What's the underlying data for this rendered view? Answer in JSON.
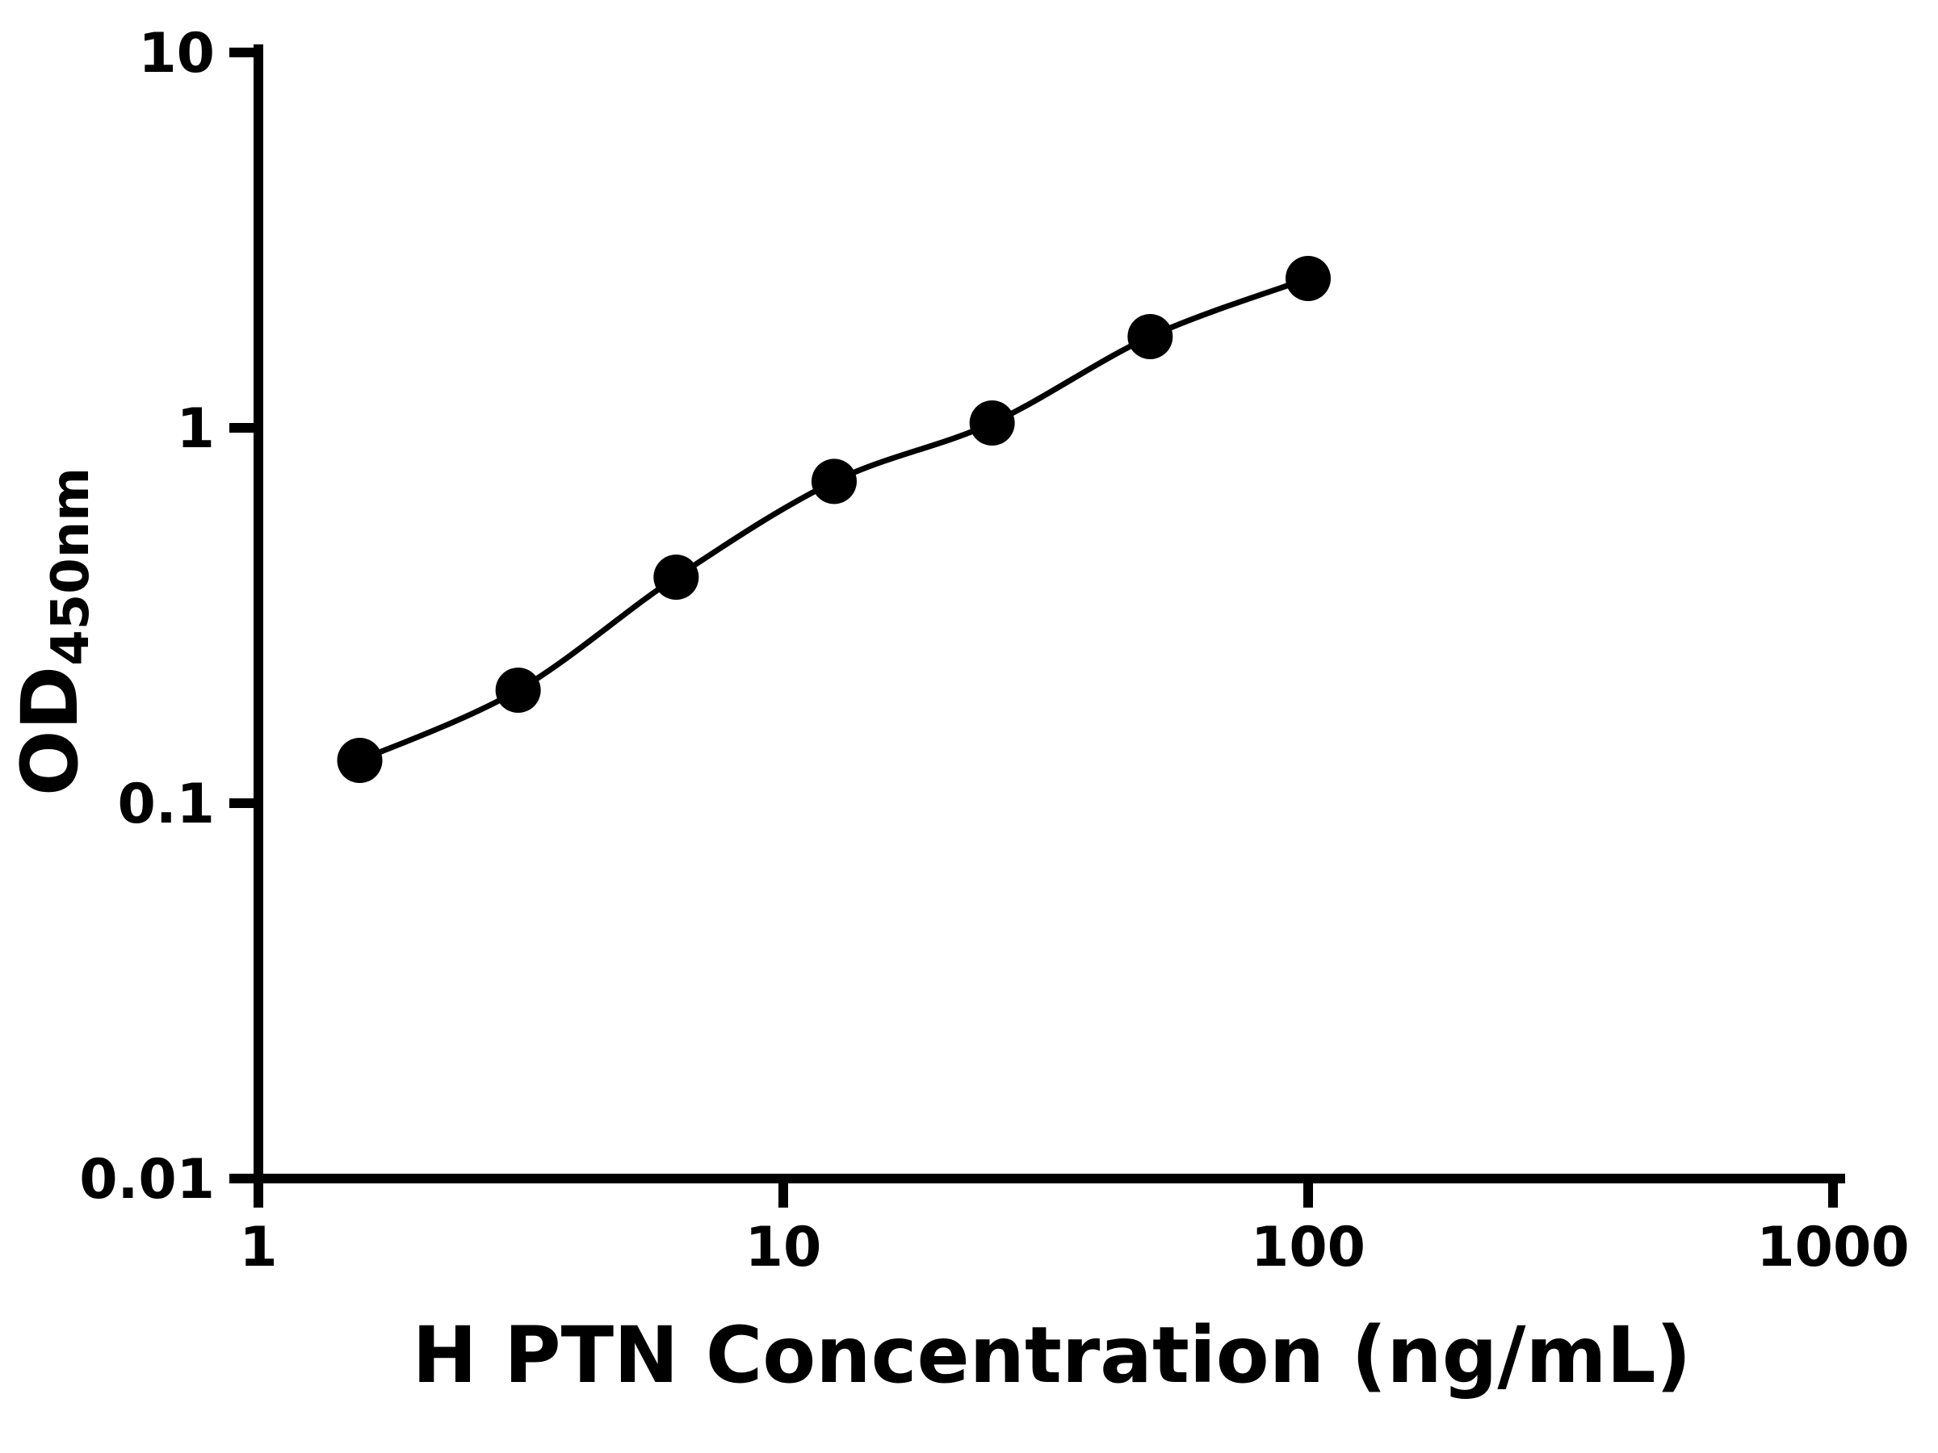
{
  "chart_data": {
    "type": "scatter",
    "x": [
      1.56,
      3.125,
      6.25,
      12.5,
      25,
      50,
      100
    ],
    "y": [
      0.13,
      0.2,
      0.4,
      0.72,
      1.03,
      1.75,
      2.5
    ],
    "xlabel": "H PTN Concentration (ng/mL)",
    "ylabel_main": "OD",
    "ylabel_sub": "450nm",
    "xscale": "log",
    "yscale": "log",
    "xlim": [
      1,
      1000
    ],
    "ylim": [
      0.01,
      10
    ],
    "xticks": [
      1,
      10,
      100,
      1000
    ],
    "yticks": [
      0.01,
      0.1,
      1,
      10
    ],
    "xtick_labels": [
      "1",
      "10",
      "100",
      "1000"
    ],
    "ytick_labels": [
      "0.01",
      "0.1",
      "1",
      "10"
    ],
    "grid": false,
    "legend": "none",
    "marker_color": "#000000",
    "line_color": "#000000",
    "axis_color": "#000000",
    "background": "#ffffff"
  }
}
